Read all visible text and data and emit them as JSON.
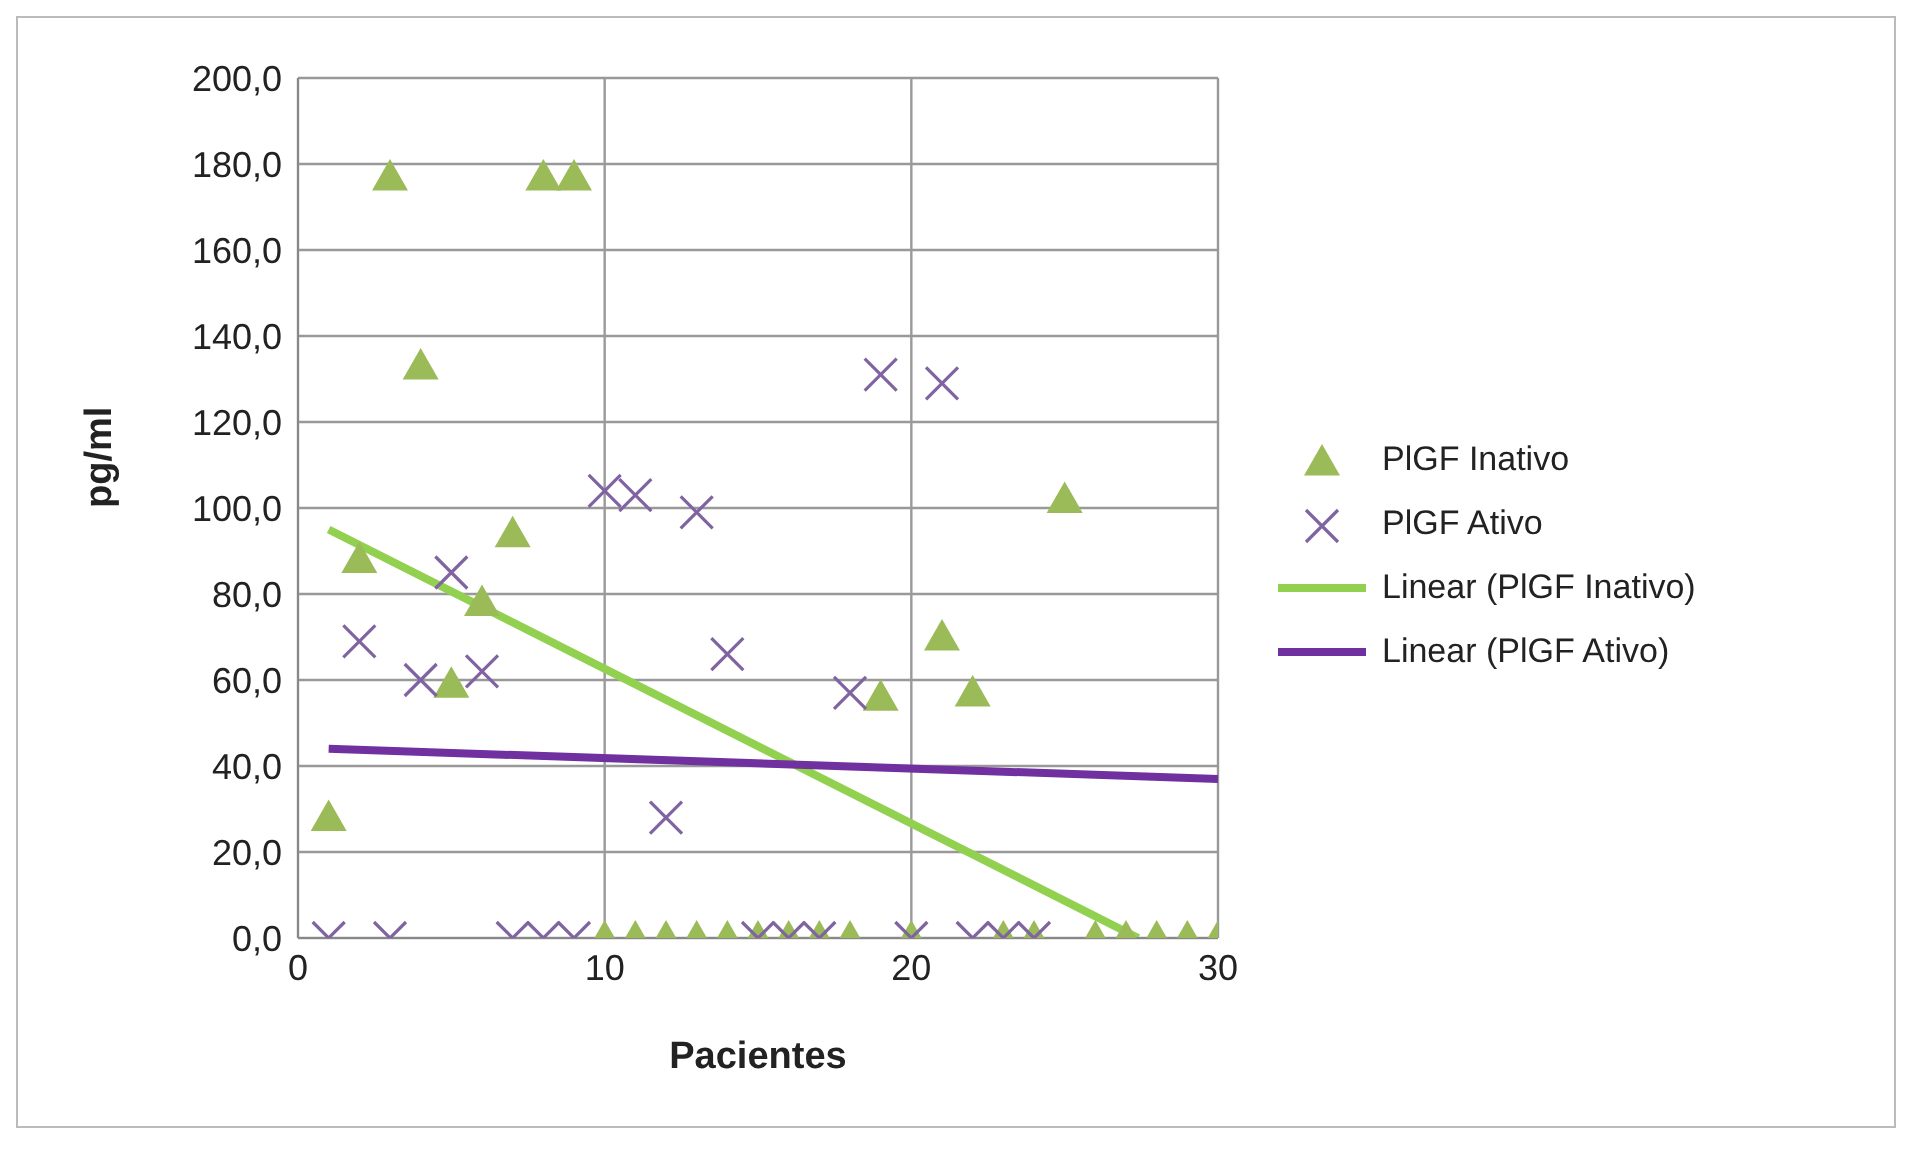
{
  "chart_data": {
    "type": "scatter",
    "xlabel": "Pacientes",
    "ylabel": "pg/ml",
    "xlim": [
      0,
      30
    ],
    "xticks": [
      0,
      10,
      20,
      30
    ],
    "ylim": [
      0,
      200
    ],
    "yticks": [
      {
        "value": 0,
        "label": "0,0"
      },
      {
        "value": 20,
        "label": "20,0"
      },
      {
        "value": 40,
        "label": "40,0"
      },
      {
        "value": 60,
        "label": "60,0"
      },
      {
        "value": 80,
        "label": "80,0"
      },
      {
        "value": 100,
        "label": "100,0"
      },
      {
        "value": 120,
        "label": "120,0"
      },
      {
        "value": 140,
        "label": "140,0"
      },
      {
        "value": 160,
        "label": "160,0"
      },
      {
        "value": 180,
        "label": "180,0"
      },
      {
        "value": 200,
        "label": "200,0"
      }
    ],
    "grid": true,
    "legend": "right",
    "series": [
      {
        "name": "PlGF Inativo",
        "marker": "triangle",
        "color": "#9bbb59",
        "x": [
          1,
          2,
          3,
          4,
          5,
          6,
          7,
          8,
          9,
          10,
          11,
          12,
          13,
          14,
          15,
          16,
          17,
          18,
          19,
          20,
          21,
          22,
          23,
          24,
          25,
          26,
          27,
          28,
          29,
          30
        ],
        "values": [
          28,
          88,
          177,
          133,
          59,
          78,
          94,
          177,
          177,
          0,
          0,
          0,
          0,
          0,
          0,
          0,
          0,
          0,
          56,
          0,
          70,
          57,
          0,
          0,
          102,
          0,
          0,
          0,
          0,
          0
        ]
      },
      {
        "name": "PlGF Ativo",
        "marker": "cross",
        "color": "#8064a2",
        "x": [
          1,
          2,
          3,
          4,
          5,
          6,
          7,
          8,
          9,
          10,
          11,
          12,
          13,
          14,
          15,
          16,
          17,
          18,
          19,
          20,
          21,
          22,
          23,
          24
        ],
        "values": [
          0,
          69,
          0,
          60,
          85,
          62,
          0,
          0,
          0,
          104,
          103,
          28,
          99,
          66,
          0,
          0,
          0,
          57,
          131,
          0,
          129,
          0,
          0,
          0
        ]
      },
      {
        "name": "Linear (PlGF Inativo)",
        "type": "line",
        "marker": "none",
        "color": "#92d050",
        "x": [
          1,
          27.4
        ],
        "values": [
          95,
          0
        ]
      },
      {
        "name": "Linear (PlGF Ativo)",
        "type": "line",
        "marker": "none",
        "color": "#7030a0",
        "x": [
          1,
          30
        ],
        "values": [
          44,
          37
        ]
      }
    ]
  }
}
